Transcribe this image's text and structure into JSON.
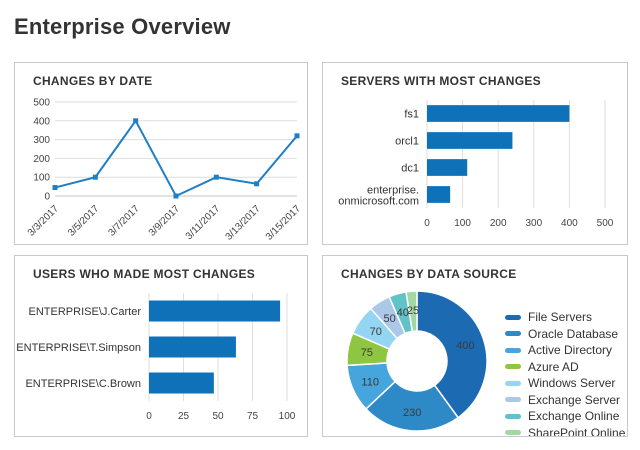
{
  "page": {
    "title": "Enterprise Overview"
  },
  "panels": {
    "changes_by_date": {
      "title": "CHANGES BY DATE"
    },
    "servers": {
      "title": "SERVERS WITH MOST CHANGES"
    },
    "users": {
      "title": "USERS WHO MADE MOST CHANGES"
    },
    "data_source": {
      "title": "CHANGES BY DATA SOURCE"
    }
  },
  "colors": {
    "bar": "#0f72b8",
    "line": "#1e7fc4",
    "grid": "#dedede",
    "grid_zero": "#c4c4c4",
    "axis_text": "#444444",
    "label_text": "#333333"
  },
  "chart_data": [
    {
      "id": "changes_by_date",
      "type": "line",
      "title": "CHANGES BY DATE",
      "x": [
        "3/3/2017",
        "3/5/2017",
        "3/7/2017",
        "3/9/2017",
        "3/11/2017",
        "3/13/2017",
        "3/15/2017"
      ],
      "values": [
        45,
        100,
        400,
        0,
        100,
        65,
        320
      ],
      "ylim": [
        0,
        500
      ],
      "ytick_step": 100,
      "grid": "horizontal",
      "marker": "square",
      "legend_position": "none"
    },
    {
      "id": "servers",
      "type": "bar",
      "orientation": "horizontal",
      "title": "SERVERS WITH MOST CHANGES",
      "categories": [
        "fs1",
        "orcl1",
        "dc1",
        "enterprise.onmicrosoft.com"
      ],
      "values": [
        400,
        240,
        113,
        65
      ],
      "xlim": [
        0,
        500
      ],
      "xtick_step": 100,
      "grid": "vertical",
      "legend_position": "none"
    },
    {
      "id": "users",
      "type": "bar",
      "orientation": "horizontal",
      "title": "USERS WHO MADE MOST CHANGES",
      "categories": [
        "ENTERPRISE\\J.Carter",
        "ENTERPRISE\\T.Simpson",
        "ENTERPRISE\\C.Brown"
      ],
      "values": [
        95,
        63,
        47
      ],
      "xlim": [
        0,
        100
      ],
      "xtick_step": 25,
      "grid": "vertical",
      "legend_position": "none"
    },
    {
      "id": "data_source",
      "type": "pie",
      "donut": true,
      "title": "CHANGES BY DATA SOURCE",
      "labels": [
        "File Servers",
        "Oracle Database",
        "Active Directory",
        "Azure AD",
        "Windows Server",
        "Exchange Server",
        "Exchange Online",
        "SharePoint Online"
      ],
      "values": [
        400,
        230,
        110,
        75,
        70,
        50,
        40,
        25
      ],
      "slice_colors": [
        "#1c6bb2",
        "#2d8ac7",
        "#45a5dc",
        "#8ec641",
        "#93d5f2",
        "#abc8e8",
        "#5fc3c8",
        "#a3d7a4"
      ],
      "value_labels": [
        400,
        230,
        110,
        75,
        70,
        50,
        40,
        25
      ],
      "legend_position": "right"
    }
  ]
}
